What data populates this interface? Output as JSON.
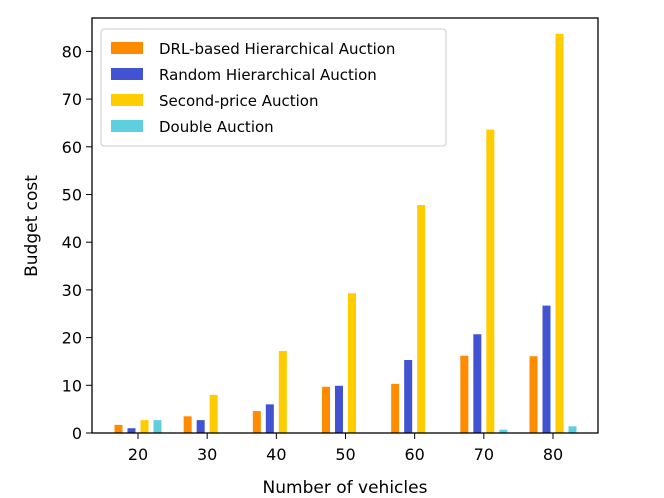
{
  "chart_data": {
    "type": "bar",
    "title": "",
    "xlabel": "Number of vehicles",
    "ylabel": "Budget cost",
    "categories": [
      "20",
      "30",
      "40",
      "50",
      "60",
      "70",
      "80"
    ],
    "ylim": [
      0,
      87
    ],
    "yticks": [
      0,
      10,
      20,
      30,
      40,
      50,
      60,
      70,
      80
    ],
    "legend_position": "top-left",
    "series": [
      {
        "name": "DRL-based Hierarchical Auction",
        "color": "#ff8c00",
        "values": [
          1.7,
          3.5,
          4.6,
          9.7,
          10.3,
          16.2,
          16.1
        ]
      },
      {
        "name": "Random Hierarchical Auction",
        "color": "#4153d0",
        "values": [
          1.0,
          2.7,
          6.0,
          9.9,
          15.3,
          20.7,
          26.7
        ]
      },
      {
        "name": "Second-price Auction",
        "color": "#ffcc00",
        "values": [
          2.7,
          8.0,
          17.2,
          29.3,
          47.8,
          63.6,
          83.7
        ]
      },
      {
        "name": "Double Auction",
        "color": "#5fcfdf",
        "values": [
          2.7,
          0.1,
          0.1,
          0.1,
          0.1,
          0.7,
          1.4
        ]
      }
    ]
  }
}
